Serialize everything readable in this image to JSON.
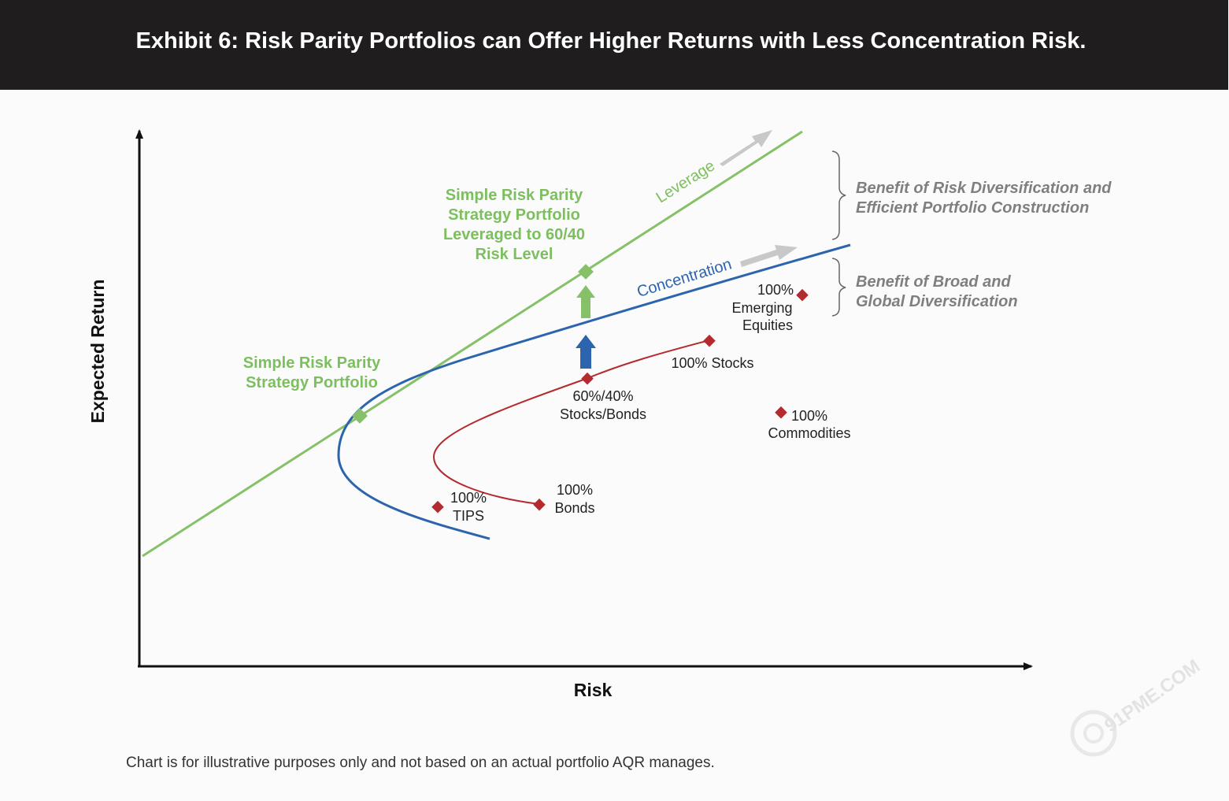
{
  "header": {
    "title": "Exhibit 6: Risk Parity Portfolios can Offer Higher Returns with Less Concentration Risk."
  },
  "footnote": "Chart is for illustrative purposes only and not based on an actual portfolio AQR manages.",
  "watermark": "91PME.COM",
  "colors": {
    "header_bg": "#1f1d1d",
    "green": "#86c16a",
    "green_text": "#7cbf5e",
    "blue": "#2c64ad",
    "red": "#b42a2e",
    "gray_arrow": "#c8c8c8",
    "gray_text": "#7f7f7f"
  },
  "chart_data": {
    "type": "scatter",
    "xlabel": "Risk",
    "ylabel": "Expected Return",
    "grid": false,
    "series": [
      {
        "name": "Leverage",
        "kind": "line"
      },
      {
        "name": "Concentration",
        "kind": "frontier"
      },
      {
        "kind": "frontier"
      }
    ],
    "points": [
      {
        "label": "100% TIPS"
      },
      {
        "label": "100% Bonds"
      },
      {
        "label": "60%/40% Stocks/Bonds"
      },
      {
        "label": "100% Stocks"
      },
      {
        "label": "100% Emerging Equities"
      },
      {
        "label": "100% Commodities"
      },
      {
        "label": "Simple Risk Parity Strategy Portfolio"
      },
      {
        "label": "Simple Risk Parity Strategy Portfolio Leveraged to 60/40 Risk Level"
      }
    ],
    "annotations": {
      "leverage": "Leverage",
      "concentration": "Concentration",
      "rp_portfolio": [
        "Simple Risk Parity",
        "Strategy Portfolio"
      ],
      "rp_leveraged": [
        "Simple Risk Parity",
        "Strategy Portfolio",
        "Leveraged to 60/40",
        "Risk Level"
      ],
      "tips": [
        "100%",
        "TIPS"
      ],
      "bonds": [
        "100%",
        "Bonds"
      ],
      "sixty_forty": [
        "60%/40%",
        "Stocks/Bonds"
      ],
      "stocks": "100% Stocks",
      "emerging": [
        "100%",
        "Emerging",
        "Equities"
      ],
      "commodities": [
        "100%",
        "Commodities"
      ],
      "benefit_risk": [
        "Benefit of Risk Diversification and",
        "Efficient Portfolio Construction"
      ],
      "benefit_global": [
        "Benefit of Broad and",
        "Global Diversification"
      ]
    }
  }
}
